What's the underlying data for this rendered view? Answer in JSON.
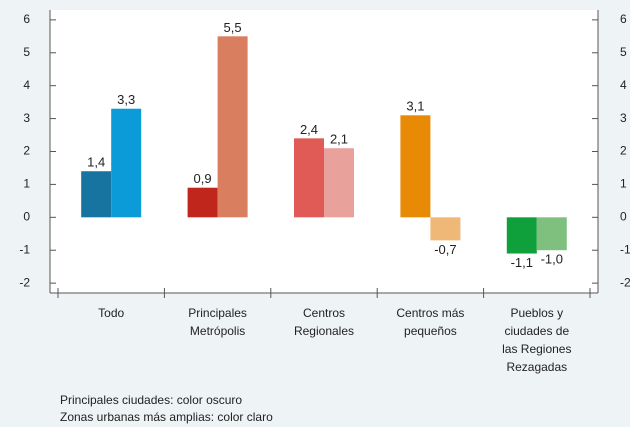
{
  "chart_data": {
    "type": "bar",
    "categories": [
      [
        "Todo"
      ],
      [
        "Principales",
        "Metrópolis"
      ],
      [
        "Centros",
        "Regionales"
      ],
      [
        "Centros más",
        "pequeños"
      ],
      [
        "Pueblos y",
        "ciudades de",
        "las Regiones",
        "Rezagadas"
      ]
    ],
    "series": [
      {
        "colors": [
          "#17739f",
          "#c0261c",
          "#e05b55",
          "#e88a06",
          "#0fa03c"
        ],
        "values": [
          1.4,
          0.9,
          2.4,
          3.1,
          -1.1
        ],
        "value_labels": [
          "1,4",
          "0,9",
          "2,4",
          "3,1",
          "-1,1"
        ]
      },
      {
        "colors": [
          "#0b9bd8",
          "#d97e5f",
          "#e9a29b",
          "#f0b877",
          "#7fc07e"
        ],
        "values": [
          3.3,
          5.5,
          2.1,
          -0.7,
          -1.0
        ],
        "value_labels": [
          "3,3",
          "5,5",
          "2,1",
          "-0,7",
          "-1,0"
        ]
      }
    ],
    "ylim": [
      -2.3,
      6.3
    ],
    "yticks": [
      6,
      5,
      4,
      3,
      2,
      1,
      0,
      -1,
      -2
    ],
    "y2lim": [
      -2.3,
      6.3
    ],
    "y2ticks": [
      6,
      5,
      4,
      3,
      2,
      1,
      0,
      -1,
      -2
    ],
    "notes": [
      "Principales ciudades: color oscuro",
      "Zonas urbanas más amplias: color claro"
    ]
  }
}
